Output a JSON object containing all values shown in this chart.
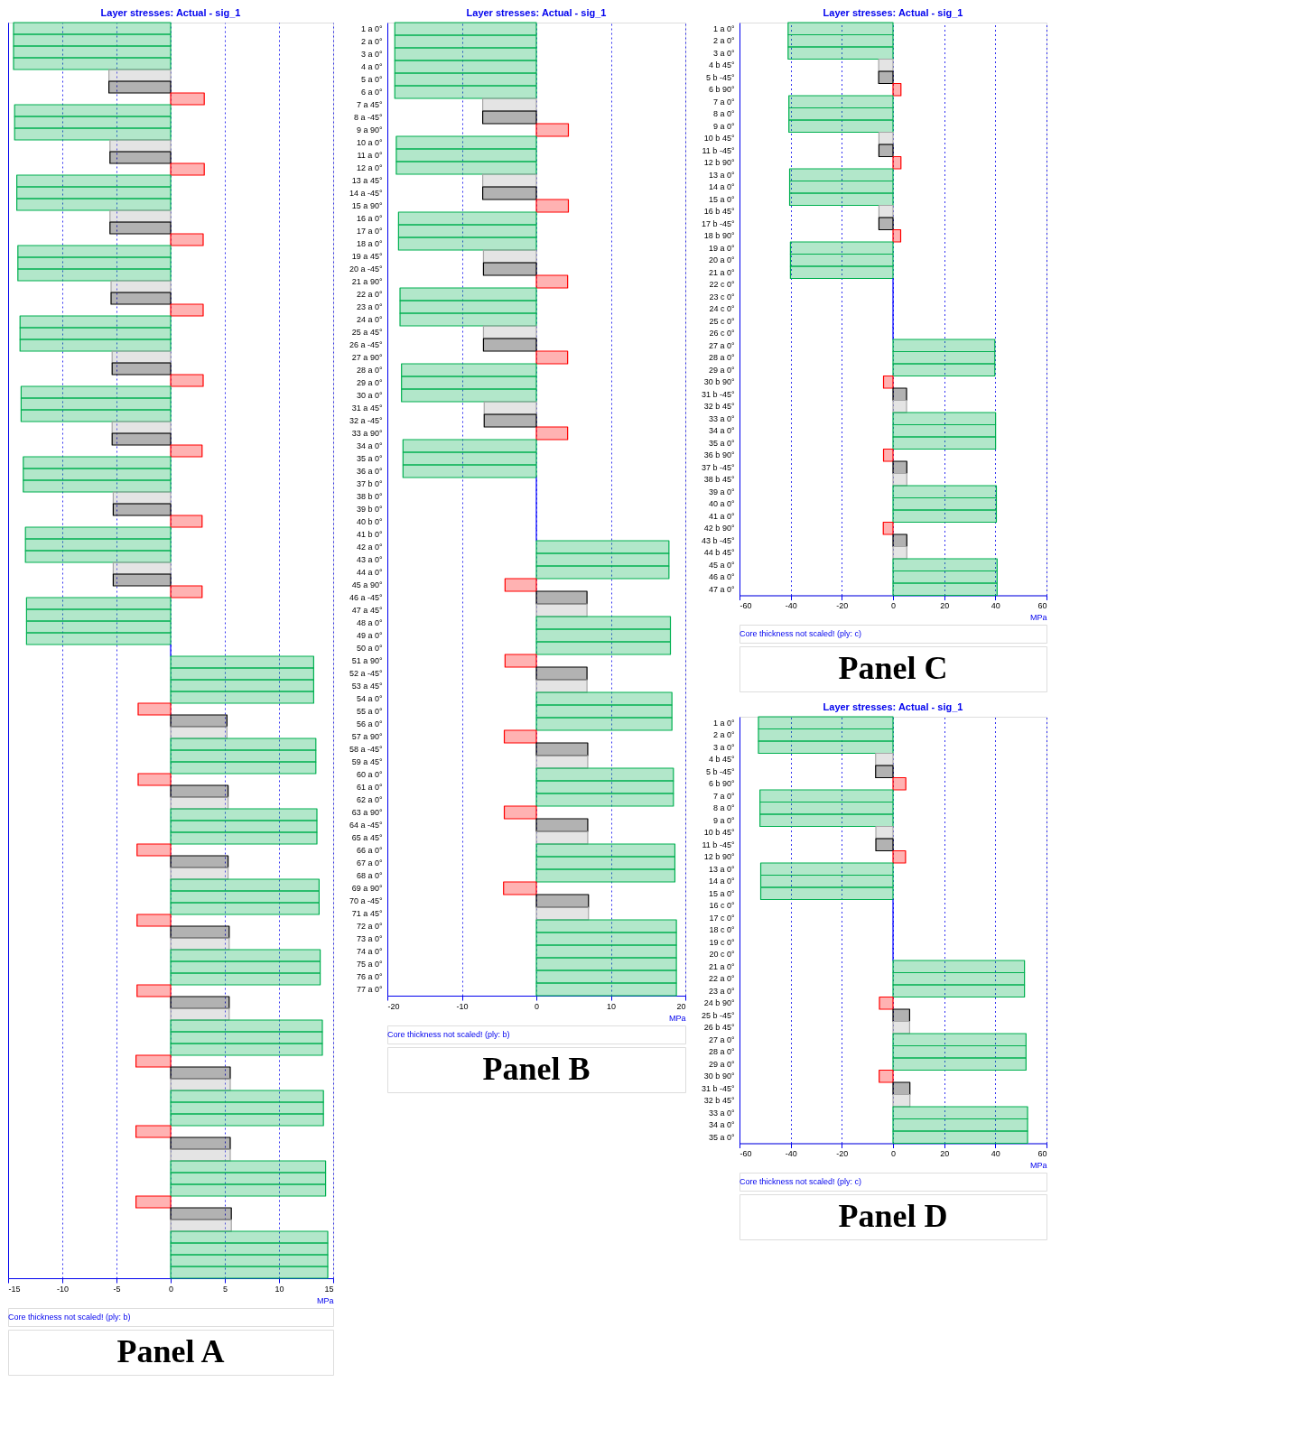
{
  "chart_data": [
    {
      "type": "bar",
      "orientation": "horizontal",
      "title": "Layer stresses: Actual - sig_1",
      "xlabel": "MPa",
      "xlim": [
        -15,
        15
      ],
      "xticks": [
        -15,
        -10,
        -5,
        0,
        5,
        10,
        15
      ],
      "grid": "x",
      "tick_labels": "x",
      "annotations": [
        "Core thickness not scaled! (ply: b)",
        "Panel A"
      ],
      "categories": [
        null,
        null,
        null,
        null,
        null,
        null,
        null,
        null,
        null,
        null,
        null,
        null,
        null,
        null,
        null,
        null,
        null,
        null,
        null,
        null,
        null,
        null,
        null,
        null,
        null,
        null,
        null,
        null,
        null,
        null,
        null,
        null,
        null,
        null,
        null,
        null,
        null,
        null,
        null,
        null,
        null,
        null,
        null,
        null,
        null,
        null,
        null,
        null,
        null,
        null,
        null,
        null,
        null,
        null,
        null,
        null,
        null,
        null,
        null,
        null,
        null,
        null,
        null,
        null,
        null,
        null,
        null,
        null,
        null,
        null,
        null,
        null,
        null,
        null,
        null,
        null,
        null,
        null,
        null,
        null,
        null,
        null,
        null,
        null,
        null,
        null,
        null,
        null,
        null,
        null,
        null,
        null,
        null,
        null,
        null,
        null,
        null,
        null,
        null,
        null,
        null,
        null,
        null,
        null,
        null,
        null,
        null
      ],
      "values": [
        -14.5,
        -14.5,
        -14.5,
        -14.5,
        -5.7,
        -5.7,
        3.1,
        -14.4,
        -14.4,
        -14.4,
        -5.6,
        -5.6,
        3.1,
        -14.2,
        -14.2,
        -14.2,
        -5.6,
        -5.6,
        3.0,
        -14.1,
        -14.1,
        -14.1,
        -5.5,
        -5.5,
        3.0,
        -13.9,
        -13.9,
        -13.9,
        -5.4,
        -5.4,
        3.0,
        -13.8,
        -13.8,
        -13.8,
        -5.4,
        -5.4,
        2.9,
        -13.6,
        -13.6,
        -13.6,
        -5.3,
        -5.3,
        2.9,
        -13.4,
        -13.4,
        -13.4,
        -5.3,
        -5.3,
        2.9,
        -13.3,
        -13.3,
        -13.3,
        -13.3,
        0,
        13.2,
        13.2,
        13.2,
        13.2,
        -3.0,
        5.2,
        5.2,
        13.4,
        13.4,
        13.4,
        -3.0,
        5.3,
        5.3,
        13.5,
        13.5,
        13.5,
        -3.1,
        5.3,
        5.3,
        13.7,
        13.7,
        13.7,
        -3.1,
        5.4,
        5.4,
        13.8,
        13.8,
        13.8,
        -3.1,
        5.4,
        5.4,
        14.0,
        14.0,
        14.0,
        -3.2,
        5.5,
        5.5,
        14.1,
        14.1,
        14.1,
        -3.2,
        5.5,
        5.5,
        14.3,
        14.3,
        14.3,
        -3.2,
        5.6,
        5.6,
        14.5,
        14.5,
        14.5,
        14.5
      ],
      "colors": [
        "#00b050",
        "#00b050",
        "#00b050",
        "#00b050",
        "#a6a6a6",
        "#000000",
        "#ff0000",
        "#00b050",
        "#00b050",
        "#00b050",
        "#a6a6a6",
        "#000000",
        "#ff0000",
        "#00b050",
        "#00b050",
        "#00b050",
        "#a6a6a6",
        "#000000",
        "#ff0000",
        "#00b050",
        "#00b050",
        "#00b050",
        "#a6a6a6",
        "#000000",
        "#ff0000",
        "#00b050",
        "#00b050",
        "#00b050",
        "#a6a6a6",
        "#000000",
        "#ff0000",
        "#00b050",
        "#00b050",
        "#00b050",
        "#a6a6a6",
        "#000000",
        "#ff0000",
        "#00b050",
        "#00b050",
        "#00b050",
        "#a6a6a6",
        "#000000",
        "#ff0000",
        "#00b050",
        "#00b050",
        "#00b050",
        "#a6a6a6",
        "#000000",
        "#ff0000",
        "#00b050",
        "#00b050",
        "#00b050",
        "#00b050",
        "#0000ff",
        "#00b050",
        "#00b050",
        "#00b050",
        "#00b050",
        "#ff0000",
        "#000000",
        "#a6a6a6",
        "#00b050",
        "#00b050",
        "#00b050",
        "#ff0000",
        "#000000",
        "#a6a6a6",
        "#00b050",
        "#00b050",
        "#00b050",
        "#ff0000",
        "#000000",
        "#a6a6a6",
        "#00b050",
        "#00b050",
        "#00b050",
        "#ff0000",
        "#000000",
        "#a6a6a6",
        "#00b050",
        "#00b050",
        "#00b050",
        "#ff0000",
        "#000000",
        "#a6a6a6",
        "#00b050",
        "#00b050",
        "#00b050",
        "#ff0000",
        "#000000",
        "#a6a6a6",
        "#00b050",
        "#00b050",
        "#00b050",
        "#ff0000",
        "#000000",
        "#a6a6a6",
        "#00b050",
        "#00b050",
        "#00b050",
        "#ff0000",
        "#000000",
        "#a6a6a6",
        "#00b050",
        "#00b050",
        "#00b050",
        "#00b050"
      ]
    },
    {
      "type": "bar",
      "orientation": "horizontal",
      "title": "Layer stresses: Actual - sig_1",
      "xlabel": "MPa",
      "xlim": [
        -20,
        20
      ],
      "xticks": [
        -20,
        -10,
        0,
        10,
        20
      ],
      "grid": "x",
      "annotations": [
        "Core thickness not scaled! (ply: b)",
        "Panel B"
      ],
      "categories": [
        "1 a 0°",
        "2 a 0°",
        "3 a 0°",
        "4 a 0°",
        "5 a 0°",
        "6 a 0°",
        "7 a 45°",
        "8 a -45°",
        "9 a 90°",
        "10 a 0°",
        "11 a 0°",
        "12 a 0°",
        "13 a 45°",
        "14 a -45°",
        "15 a 90°",
        "16 a 0°",
        "17 a 0°",
        "18 a 0°",
        "19 a 45°",
        "20 a -45°",
        "21 a 90°",
        "22 a 0°",
        "23 a 0°",
        "24 a 0°",
        "25 a 45°",
        "26 a -45°",
        "27 a 90°",
        "28 a 0°",
        "29 a 0°",
        "30 a 0°",
        "31 a 45°",
        "32 a -45°",
        "33 a 90°",
        "34 a 0°",
        "35 a 0°",
        "36 a 0°",
        "37 b 0°",
        "38 b 0°",
        "39 b 0°",
        "40 b 0°",
        "41 b 0°",
        "42 a 0°",
        "43 a 0°",
        "44 a 0°",
        "45 a 90°",
        "46 a -45°",
        "47 a 45°",
        "48 a 0°",
        "49 a 0°",
        "50 a 0°",
        "51 a 90°",
        "52 a -45°",
        "53 a 45°",
        "54 a 0°",
        "55 a 0°",
        "56 a 0°",
        "57 a 90°",
        "58 a -45°",
        "59 a 45°",
        "60 a 0°",
        "61 a 0°",
        "62 a 0°",
        "63 a 90°",
        "64 a -45°",
        "65 a 45°",
        "66 a 0°",
        "67 a 0°",
        "68 a 0°",
        "69 a 90°",
        "70 a -45°",
        "71 a 45°",
        "72 a 0°",
        "73 a 0°",
        "74 a 0°",
        "75 a 0°",
        "76 a 0°",
        "77 a 0°"
      ],
      "values": [
        -19.0,
        -19.0,
        -19.0,
        -19.0,
        -19.0,
        -19.0,
        -7.2,
        -7.2,
        4.3,
        -18.8,
        -18.8,
        -18.8,
        -7.2,
        -7.2,
        4.3,
        -18.5,
        -18.5,
        -18.5,
        -7.1,
        -7.1,
        4.2,
        -18.3,
        -18.3,
        -18.3,
        -7.1,
        -7.1,
        4.2,
        -18.1,
        -18.1,
        -18.1,
        -7.0,
        -7.0,
        4.2,
        -17.9,
        -17.9,
        -17.9,
        0,
        0,
        0,
        0,
        0,
        17.8,
        17.8,
        17.8,
        -4.2,
        6.8,
        6.8,
        18.0,
        18.0,
        18.0,
        -4.2,
        6.8,
        6.8,
        18.2,
        18.2,
        18.2,
        -4.3,
        6.9,
        6.9,
        18.4,
        18.4,
        18.4,
        -4.3,
        6.9,
        6.9,
        18.6,
        18.6,
        18.6,
        -4.4,
        7.0,
        7.0,
        18.8,
        18.8,
        18.8,
        18.8,
        18.8,
        18.8
      ],
      "colors": [
        "#00b050",
        "#00b050",
        "#00b050",
        "#00b050",
        "#00b050",
        "#00b050",
        "#a6a6a6",
        "#000000",
        "#ff0000",
        "#00b050",
        "#00b050",
        "#00b050",
        "#a6a6a6",
        "#000000",
        "#ff0000",
        "#00b050",
        "#00b050",
        "#00b050",
        "#a6a6a6",
        "#000000",
        "#ff0000",
        "#00b050",
        "#00b050",
        "#00b050",
        "#a6a6a6",
        "#000000",
        "#ff0000",
        "#00b050",
        "#00b050",
        "#00b050",
        "#a6a6a6",
        "#000000",
        "#ff0000",
        "#00b050",
        "#00b050",
        "#00b050",
        "#0000ff",
        "#0000ff",
        "#0000ff",
        "#0000ff",
        "#0000ff",
        "#00b050",
        "#00b050",
        "#00b050",
        "#ff0000",
        "#000000",
        "#a6a6a6",
        "#00b050",
        "#00b050",
        "#00b050",
        "#ff0000",
        "#000000",
        "#a6a6a6",
        "#00b050",
        "#00b050",
        "#00b050",
        "#ff0000",
        "#000000",
        "#a6a6a6",
        "#00b050",
        "#00b050",
        "#00b050",
        "#ff0000",
        "#000000",
        "#a6a6a6",
        "#00b050",
        "#00b050",
        "#00b050",
        "#ff0000",
        "#000000",
        "#a6a6a6",
        "#00b050",
        "#00b050",
        "#00b050",
        "#00b050",
        "#00b050",
        "#00b050"
      ]
    },
    {
      "type": "bar",
      "orientation": "horizontal",
      "title": "Layer stresses: Actual - sig_1",
      "xlabel": "MPa",
      "xlim": [
        -60,
        60
      ],
      "xticks": [
        -60,
        -40,
        -20,
        0,
        20,
        40,
        60
      ],
      "grid": "x",
      "annotations": [
        "Core thickness not scaled! (ply: c)",
        "Panel C"
      ],
      "categories": [
        "1 a 0°",
        "2 a 0°",
        "3 a 0°",
        "4 b 45°",
        "5 b -45°",
        "6 b 90°",
        "7 a 0°",
        "8 a 0°",
        "9 a 0°",
        "10 b 45°",
        "11 b -45°",
        "12 b 90°",
        "13 a 0°",
        "14 a 0°",
        "15 a 0°",
        "16 b 45°",
        "17 b -45°",
        "18 b 90°",
        "19 a 0°",
        "20 a 0°",
        "21 a 0°",
        "22 c 0°",
        "23 c 0°",
        "24 c 0°",
        "25 c 0°",
        "26 c 0°",
        "27 a 0°",
        "28 a 0°",
        "29 a 0°",
        "30 b 90°",
        "31 b -45°",
        "32 b 45°",
        "33 a 0°",
        "34 a 0°",
        "35 a 0°",
        "36 b 90°",
        "37 b -45°",
        "38 b 45°",
        "39 a 0°",
        "40 a 0°",
        "41 a 0°",
        "42 b 90°",
        "43 b -45°",
        "44 b 45°",
        "45 a 0°",
        "46 a 0°",
        "47 a 0°"
      ],
      "values": [
        -41.0,
        -41.0,
        -41.0,
        -5.6,
        -5.6,
        3.1,
        -40.7,
        -40.7,
        -40.7,
        -5.5,
        -5.5,
        3.1,
        -40.4,
        -40.4,
        -40.4,
        -5.5,
        -5.5,
        3.0,
        -40.1,
        -40.1,
        -40.1,
        0,
        0,
        0,
        0,
        0,
        39.8,
        39.8,
        39.8,
        -3.7,
        5.3,
        5.3,
        40.1,
        40.1,
        40.1,
        -3.7,
        5.4,
        5.4,
        40.4,
        40.4,
        40.4,
        -3.8,
        5.4,
        5.4,
        40.7,
        40.7,
        40.7
      ],
      "colors": [
        "#00b050",
        "#00b050",
        "#00b050",
        "#a6a6a6",
        "#000000",
        "#ff0000",
        "#00b050",
        "#00b050",
        "#00b050",
        "#a6a6a6",
        "#000000",
        "#ff0000",
        "#00b050",
        "#00b050",
        "#00b050",
        "#a6a6a6",
        "#000000",
        "#ff0000",
        "#00b050",
        "#00b050",
        "#00b050",
        "#0000ff",
        "#0000ff",
        "#0000ff",
        "#0000ff",
        "#0000ff",
        "#00b050",
        "#00b050",
        "#00b050",
        "#ff0000",
        "#000000",
        "#a6a6a6",
        "#00b050",
        "#00b050",
        "#00b050",
        "#ff0000",
        "#000000",
        "#a6a6a6",
        "#00b050",
        "#00b050",
        "#00b050",
        "#ff0000",
        "#000000",
        "#a6a6a6",
        "#00b050",
        "#00b050",
        "#00b050"
      ]
    },
    {
      "type": "bar",
      "orientation": "horizontal",
      "title": "Layer stresses: Actual - sig_1",
      "xlabel": "MPa",
      "xlim": [
        -60,
        60
      ],
      "xticks": [
        -60,
        -40,
        -20,
        0,
        20,
        40,
        60
      ],
      "grid": "x",
      "annotations": [
        "Core thickness not scaled! (ply: c)",
        "Panel D"
      ],
      "categories": [
        "1 a 0°",
        "2 a 0°",
        "3 a 0°",
        "4 b 45°",
        "5 b -45°",
        "6 b 90°",
        "7 a 0°",
        "8 a 0°",
        "9 a 0°",
        "10 b 45°",
        "11 b -45°",
        "12 b 90°",
        "13 a 0°",
        "14 a 0°",
        "15 a 0°",
        "16 c 0°",
        "17 c 0°",
        "18 c 0°",
        "19 c 0°",
        "20 c 0°",
        "21 a 0°",
        "22 a 0°",
        "23 a 0°",
        "24 b 90°",
        "25 b -45°",
        "26 b 45°",
        "27 a 0°",
        "28 a 0°",
        "29 a 0°",
        "30 b 90°",
        "31 b -45°",
        "32 b 45°",
        "33 a 0°",
        "34 a 0°",
        "35 a 0°"
      ],
      "values": [
        -52.6,
        -52.6,
        -52.6,
        -6.8,
        -6.8,
        5.0,
        -52.0,
        -52.0,
        -52.0,
        -6.7,
        -6.7,
        4.9,
        -51.7,
        -51.7,
        -51.7,
        0,
        0,
        0,
        0,
        0,
        51.4,
        51.4,
        51.4,
        -5.3,
        6.5,
        6.5,
        52.0,
        52.0,
        52.0,
        -5.4,
        6.6,
        6.6,
        52.6,
        52.6,
        52.6
      ],
      "colors": [
        "#00b050",
        "#00b050",
        "#00b050",
        "#a6a6a6",
        "#000000",
        "#ff0000",
        "#00b050",
        "#00b050",
        "#00b050",
        "#a6a6a6",
        "#000000",
        "#ff0000",
        "#00b050",
        "#00b050",
        "#00b050",
        "#0000ff",
        "#0000ff",
        "#0000ff",
        "#0000ff",
        "#0000ff",
        "#00b050",
        "#00b050",
        "#00b050",
        "#ff0000",
        "#000000",
        "#a6a6a6",
        "#00b050",
        "#00b050",
        "#00b050",
        "#ff0000",
        "#000000",
        "#a6a6a6",
        "#00b050",
        "#00b050",
        "#00b050"
      ]
    }
  ]
}
